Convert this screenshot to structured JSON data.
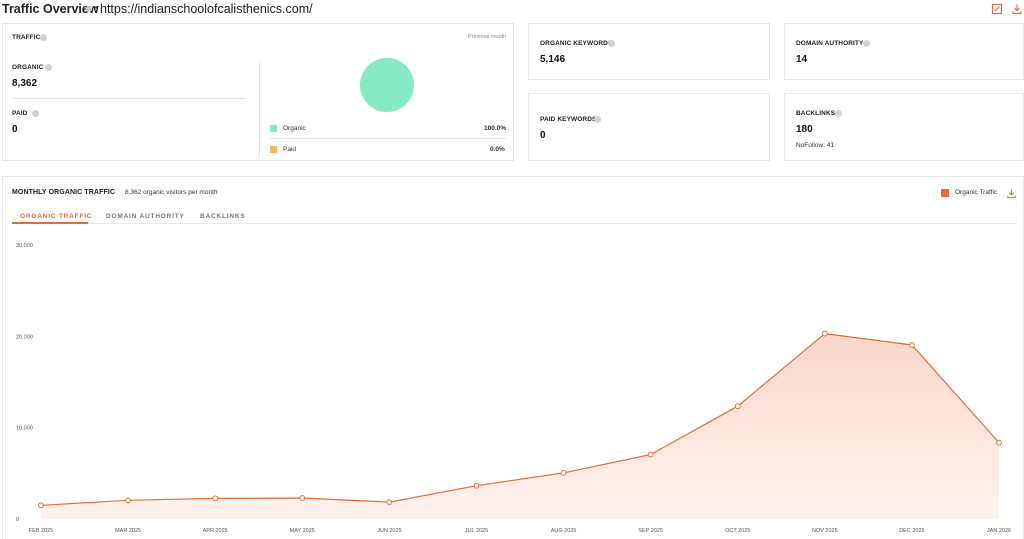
{
  "header": {
    "title": "Traffic Overview",
    "separator": ":",
    "url": "https://indianschoolofcalisthenics.com/"
  },
  "traffic": {
    "label": "TRAFFIC",
    "period": "Previous month",
    "organic_label": "ORGANIC",
    "organic_value": "8,362",
    "paid_label": "PAID",
    "paid_value": "0",
    "legend": [
      {
        "name": "Organic",
        "pct": "100.0%",
        "color": "#86eac3"
      },
      {
        "name": "Paid",
        "pct": "0.0%",
        "color": "#f5b95a"
      }
    ]
  },
  "organic_keywords": {
    "label": "ORGANIC KEYWORDS",
    "value": "5,146"
  },
  "paid_keywords": {
    "label": "PAID KEYWORDS",
    "value": "0"
  },
  "domain_authority": {
    "label": "DOMAIN AUTHORITY",
    "value": "14"
  },
  "backlinks": {
    "label": "BACKLINKS",
    "value": "180",
    "nofollow": "NoFollow: 41"
  },
  "monthly": {
    "title": "MONTHLY ORGANIC TRAFFIC",
    "subtitle": "8,362 organic visitors per month",
    "legend_label": "Organic Traffic",
    "accent": "#e8693a",
    "tabs": [
      "ORGANIC TRAFFIC",
      "DOMAIN AUTHORITY",
      "BACKLINKS"
    ]
  },
  "chart_data": {
    "type": "area",
    "categories": [
      "FEB 2025",
      "MAR 2025",
      "APR 2025",
      "MAY 2025",
      "JUN 2025",
      "JUL 2025",
      "AUG 2025",
      "SEP 2025",
      "OCT 2025",
      "NOV 2025",
      "DEC 2025",
      "JAN 2026"
    ],
    "series": [
      {
        "name": "Organic Traffic",
        "values": [
          1500,
          2050,
          2250,
          2300,
          1850,
          3650,
          5050,
          7050,
          12350,
          20300,
          19050,
          8362
        ]
      }
    ],
    "yticks": [
      "0",
      "10,000",
      "20,000",
      "30,000"
    ],
    "ylim": [
      0,
      30000
    ],
    "grid": false
  }
}
